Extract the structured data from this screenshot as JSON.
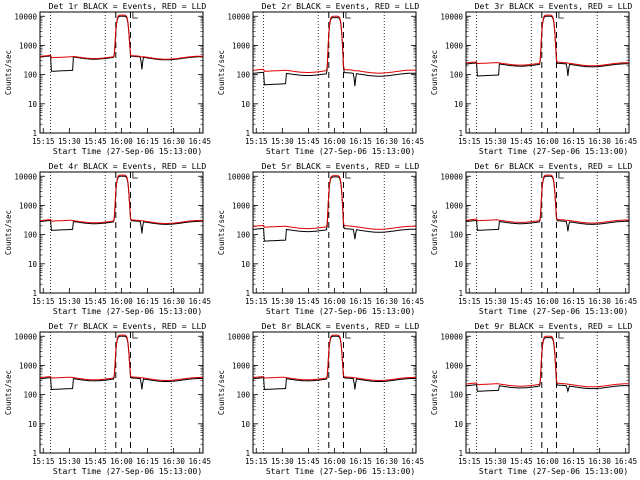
{
  "legend_text": "BLACK = Events, RED = LLD",
  "colors": {
    "events": "#000000",
    "lld": "#e00000",
    "background": "#ffffff",
    "axes": "#000000"
  },
  "chart_data": [
    {
      "type": "line",
      "title": "Det 1r BLACK = Events, RED = LLD",
      "xlabel": "Start Time (27-Sep-06 15:13:00)",
      "ylabel": "Counts/sec",
      "yscale": "log",
      "ylim": [
        1,
        14000
      ],
      "xlim": [
        0,
        100
      ],
      "xticklabels": [
        "15:15",
        "15:30",
        "15:45",
        "16:00",
        "16:15",
        "16:30",
        "16:45"
      ],
      "yticklabels": [
        "1",
        "10",
        "100",
        "1000",
        "10000"
      ],
      "grid": false,
      "vertical_dotted_lines": [
        6.5,
        40,
        80.5
      ],
      "vertical_dashed_lines": [
        46.5,
        55.5
      ],
      "series": [
        {
          "name": "Events",
          "base": 400,
          "peak": 10000,
          "dip": 130,
          "dip2": 150
        },
        {
          "name": "LLD",
          "base": 420,
          "peak": 11000,
          "dip": 380,
          "dip2": 400
        }
      ]
    },
    {
      "type": "line",
      "title": "Det 2r BLACK = Events, RED = LLD",
      "xlabel": "Start Time (27-Sep-06 15:13:00)",
      "ylabel": "Counts/sec",
      "yscale": "log",
      "ylim": [
        1,
        14000
      ],
      "xlim": [
        0,
        100
      ],
      "xticklabels": [
        "15:15",
        "15:30",
        "15:45",
        "16:00",
        "16:15",
        "16:30",
        "16:45"
      ],
      "yticklabels": [
        "1",
        "10",
        "100",
        "1000",
        "10000"
      ],
      "grid": false,
      "vertical_dotted_lines": [
        6.5,
        40,
        80.5
      ],
      "vertical_dashed_lines": [
        46.5,
        55.5
      ],
      "series": [
        {
          "name": "Events",
          "base": 110,
          "peak": 9000,
          "dip": 45,
          "dip2": 40
        },
        {
          "name": "LLD",
          "base": 140,
          "peak": 10000,
          "dip": 130,
          "dip2": 135
        }
      ]
    },
    {
      "type": "line",
      "title": "Det 3r BLACK = Events, RED = LLD",
      "xlabel": "Start Time (27-Sep-06 15:13:00)",
      "ylabel": "Counts/sec",
      "yscale": "log",
      "ylim": [
        1,
        14000
      ],
      "xlim": [
        0,
        100
      ],
      "xticklabels": [
        "15:15",
        "15:30",
        "15:45",
        "16:00",
        "16:15",
        "16:30",
        "16:45"
      ],
      "yticklabels": [
        "1",
        "10",
        "100",
        "1000",
        "10000"
      ],
      "grid": false,
      "vertical_dotted_lines": [
        6.5,
        40,
        80.5
      ],
      "vertical_dashed_lines": [
        46.5,
        55.5
      ],
      "series": [
        {
          "name": "Events",
          "base": 230,
          "peak": 10000,
          "dip": 90,
          "dip2": 90
        },
        {
          "name": "LLD",
          "base": 250,
          "peak": 11000,
          "dip": 240,
          "dip2": 250
        }
      ]
    },
    {
      "type": "line",
      "title": "Det 4r BLACK = Events, RED = LLD",
      "xlabel": "Start Time (27-Sep-06 15:13:00)",
      "ylabel": "Counts/sec",
      "yscale": "log",
      "ylim": [
        1,
        14000
      ],
      "xlim": [
        0,
        100
      ],
      "xticklabels": [
        "15:15",
        "15:30",
        "15:45",
        "16:00",
        "16:15",
        "16:30",
        "16:45"
      ],
      "yticklabels": [
        "1",
        "10",
        "100",
        "1000",
        "10000"
      ],
      "grid": false,
      "vertical_dotted_lines": [
        6.5,
        40,
        80.5
      ],
      "vertical_dashed_lines": [
        46.5,
        55.5
      ],
      "series": [
        {
          "name": "Events",
          "base": 280,
          "peak": 10000,
          "dip": 140,
          "dip2": 110
        },
        {
          "name": "LLD",
          "base": 300,
          "peak": 11000,
          "dip": 290,
          "dip2": 300
        }
      ]
    },
    {
      "type": "line",
      "title": "Det 5r BLACK = Events, RED = LLD",
      "xlabel": "Start Time (27-Sep-06 15:13:00)",
      "ylabel": "Counts/sec",
      "yscale": "log",
      "ylim": [
        1,
        14000
      ],
      "xlim": [
        0,
        100
      ],
      "xticklabels": [
        "15:15",
        "15:30",
        "15:45",
        "16:00",
        "16:15",
        "16:30",
        "16:45"
      ],
      "yticklabels": [
        "1",
        "10",
        "100",
        "1000",
        "10000"
      ],
      "grid": false,
      "vertical_dotted_lines": [
        6.5,
        40,
        80.5
      ],
      "vertical_dashed_lines": [
        46.5,
        55.5
      ],
      "series": [
        {
          "name": "Events",
          "base": 150,
          "peak": 9500,
          "dip": 60,
          "dip2": 70
        },
        {
          "name": "LLD",
          "base": 190,
          "peak": 10500,
          "dip": 180,
          "dip2": 190
        }
      ]
    },
    {
      "type": "line",
      "title": "Det 6r BLACK = Events, RED = LLD",
      "xlabel": "Start Time (27-Sep-06 15:13:00)",
      "ylabel": "Counts/sec",
      "yscale": "log",
      "ylim": [
        1,
        14000
      ],
      "xlim": [
        0,
        100
      ],
      "xticklabels": [
        "15:15",
        "15:30",
        "15:45",
        "16:00",
        "16:15",
        "16:30",
        "16:45"
      ],
      "yticklabels": [
        "1",
        "10",
        "100",
        "1000",
        "10000"
      ],
      "grid": false,
      "vertical_dotted_lines": [
        6.5,
        40,
        80.5
      ],
      "vertical_dashed_lines": [
        46.5,
        55.5
      ],
      "series": [
        {
          "name": "Events",
          "base": 280,
          "peak": 10000,
          "dip": 140,
          "dip2": 130
        },
        {
          "name": "LLD",
          "base": 310,
          "peak": 11000,
          "dip": 300,
          "dip2": 310
        }
      ]
    },
    {
      "type": "line",
      "title": "Det 7r BLACK = Events, RED = LLD",
      "xlabel": "Start Time (27-Sep-06 15:13:00)",
      "ylabel": "Counts/sec",
      "yscale": "log",
      "ylim": [
        1,
        14000
      ],
      "xlim": [
        0,
        100
      ],
      "xticklabels": [
        "15:15",
        "15:30",
        "15:45",
        "16:00",
        "16:15",
        "16:30",
        "16:45"
      ],
      "yticklabels": [
        "1",
        "10",
        "100",
        "1000",
        "10000"
      ],
      "grid": false,
      "vertical_dotted_lines": [
        6.5,
        40,
        80.5
      ],
      "vertical_dashed_lines": [
        46.5,
        55.5
      ],
      "series": [
        {
          "name": "Events",
          "base": 350,
          "peak": 10000,
          "dip": 150,
          "dip2": 150
        },
        {
          "name": "LLD",
          "base": 380,
          "peak": 11000,
          "dip": 370,
          "dip2": 380
        }
      ]
    },
    {
      "type": "line",
      "title": "Det 8r BLACK = Events, RED = LLD",
      "xlabel": "Start Time (27-Sep-06 15:13:00)",
      "ylabel": "Counts/sec",
      "yscale": "log",
      "ylim": [
        1,
        14000
      ],
      "xlim": [
        0,
        100
      ],
      "xticklabels": [
        "15:15",
        "15:30",
        "15:45",
        "16:00",
        "16:15",
        "16:30",
        "16:45"
      ],
      "yticklabels": [
        "1",
        "10",
        "100",
        "1000",
        "10000"
      ],
      "grid": false,
      "vertical_dotted_lines": [
        6.5,
        40,
        80.5
      ],
      "vertical_dashed_lines": [
        46.5,
        55.5
      ],
      "series": [
        {
          "name": "Events",
          "base": 350,
          "peak": 10000,
          "dip": 150,
          "dip2": 150
        },
        {
          "name": "LLD",
          "base": 380,
          "peak": 11000,
          "dip": 370,
          "dip2": 380
        }
      ]
    },
    {
      "type": "line",
      "title": "Det 9r BLACK = Events, RED = LLD",
      "xlabel": "Start Time (27-Sep-06 15:13:00)",
      "ylabel": "Counts/sec",
      "yscale": "log",
      "ylim": [
        1,
        14000
      ],
      "xlim": [
        0,
        100
      ],
      "xticklabels": [
        "15:15",
        "15:30",
        "15:45",
        "16:00",
        "16:15",
        "16:30",
        "16:45"
      ],
      "yticklabels": [
        "1",
        "10",
        "100",
        "1000",
        "10000"
      ],
      "grid": false,
      "vertical_dotted_lines": [
        6.5,
        40,
        80.5
      ],
      "vertical_dashed_lines": [
        46.5,
        55.5
      ],
      "series": [
        {
          "name": "Events",
          "base": 200,
          "peak": 9000,
          "dip": 130,
          "dip2": 130
        },
        {
          "name": "LLD",
          "base": 230,
          "peak": 10000,
          "dip": 220,
          "dip2": 230
        }
      ]
    }
  ]
}
